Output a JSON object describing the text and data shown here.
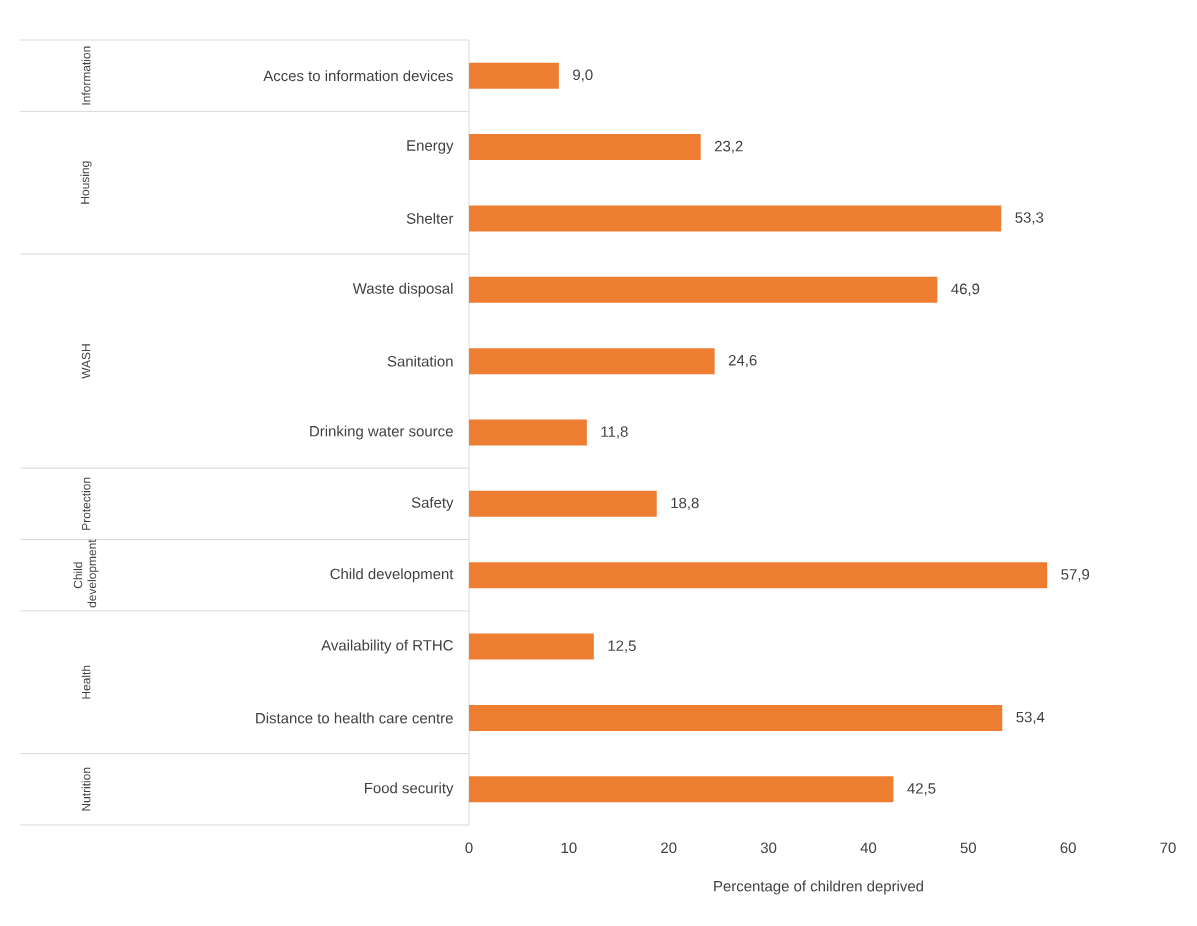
{
  "chart_data": {
    "type": "bar",
    "orientation": "horizontal",
    "categories": [
      "Acces to information devices",
      "Energy",
      "Shelter",
      "Waste disposal",
      "Sanitation",
      "Drinking water source",
      "Safety",
      "Child development",
      "Availability of RTHC",
      "Distance to health care centre",
      "Food security"
    ],
    "values": [
      9.0,
      23.2,
      53.3,
      46.9,
      24.6,
      11.8,
      18.8,
      57.9,
      12.5,
      53.4,
      42.5
    ],
    "value_labels": [
      "9,0",
      "23,2",
      "53,3",
      "46,9",
      "24,6",
      "11,8",
      "18,8",
      "57,9",
      "12,5",
      "53,4",
      "42,5"
    ],
    "color": "#ed7d31",
    "xlim": [
      0,
      70
    ],
    "xticks": [
      0,
      10,
      20,
      30,
      40,
      50,
      60,
      70
    ],
    "xlabel": "Percentage of children deprived",
    "annotations": [
      "Information",
      "Housing",
      "WASH",
      "Protection",
      "Child development",
      "Health",
      "Nutrition"
    ]
  }
}
